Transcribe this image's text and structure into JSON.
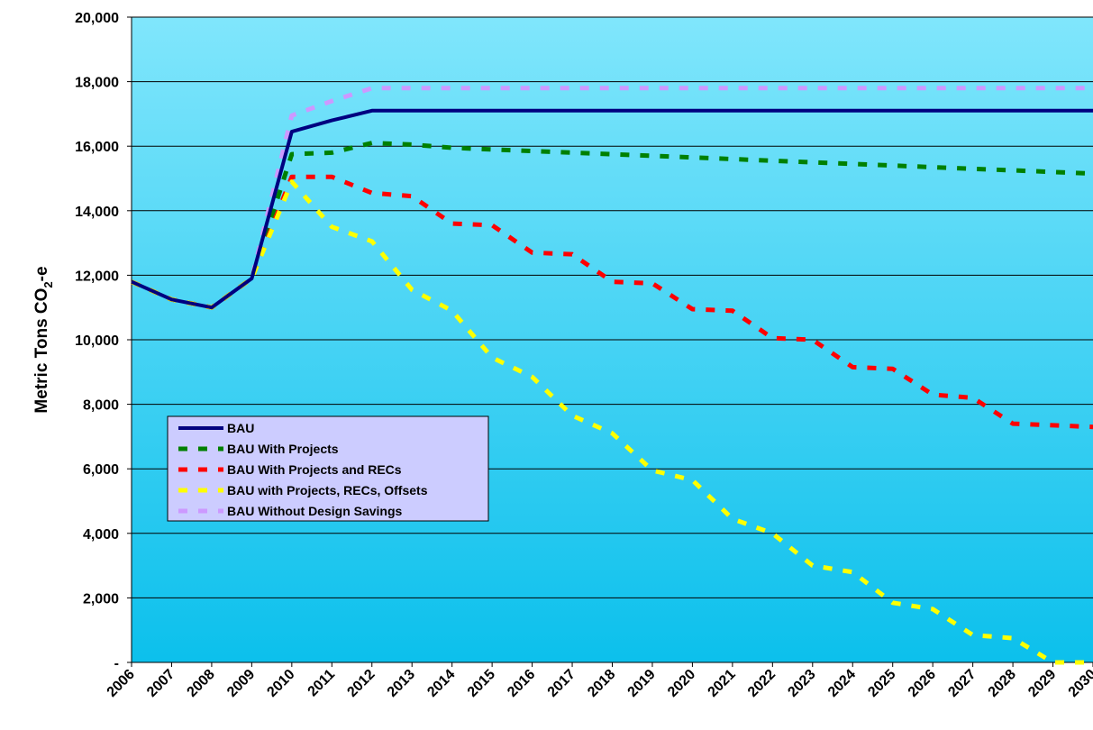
{
  "chart_data": {
    "type": "line",
    "title": "",
    "xlabel": "",
    "ylabel": "Metric Tons CO2-e",
    "ylabel_parts": {
      "main": "Metric Tons CO",
      "sub": "2",
      "tail": "-e"
    },
    "categories": [
      "2006",
      "2007",
      "2008",
      "2009",
      "2010",
      "2011",
      "2012",
      "2013",
      "2014",
      "2015",
      "2016",
      "2017",
      "2018",
      "2019",
      "2020",
      "2021",
      "2022",
      "2023",
      "2024",
      "2025",
      "2026",
      "2027",
      "2028",
      "2029",
      "2030"
    ],
    "ylim": [
      0,
      20000
    ],
    "yticks": [
      0,
      2000,
      4000,
      6000,
      8000,
      10000,
      12000,
      14000,
      16000,
      18000,
      20000
    ],
    "ytick_labels": [
      "-",
      "2,000",
      "4,000",
      "6,000",
      "8,000",
      "10,000",
      "12,000",
      "14,000",
      "16,000",
      "18,000",
      "20,000"
    ],
    "grid": true,
    "legend_position": "left-middle",
    "series": [
      {
        "name": "BAU",
        "color": "#000080",
        "style": "solid",
        "values": [
          11800,
          11250,
          11000,
          11900,
          16450,
          16800,
          17100,
          17100,
          17100,
          17100,
          17100,
          17100,
          17100,
          17100,
          17100,
          17100,
          17100,
          17100,
          17100,
          17100,
          17100,
          17100,
          17100,
          17100,
          17100
        ]
      },
      {
        "name": "BAU With Projects",
        "color": "#008000",
        "style": "dashed",
        "values": [
          11800,
          11250,
          11000,
          11900,
          15750,
          15800,
          16100,
          16050,
          15950,
          15900,
          15850,
          15800,
          15750,
          15700,
          15650,
          15600,
          15550,
          15500,
          15450,
          15400,
          15350,
          15300,
          15250,
          15200,
          15150
        ]
      },
      {
        "name": "BAU With Projects and RECs",
        "color": "#ff0000",
        "style": "dashed",
        "values": [
          11800,
          11250,
          11000,
          11900,
          15050,
          15050,
          14550,
          14450,
          13600,
          13550,
          12700,
          12650,
          11800,
          11750,
          10950,
          10900,
          10050,
          10000,
          9150,
          9100,
          8300,
          8200,
          7400,
          7350,
          7300
        ]
      },
      {
        "name": "BAU with Projects, RECs, Offsets",
        "color": "#ffff00",
        "style": "dashed",
        "values": [
          11800,
          11250,
          11000,
          11900,
          14900,
          13500,
          13050,
          11550,
          10900,
          9450,
          8850,
          7650,
          7100,
          5950,
          5650,
          4450,
          4000,
          3000,
          2800,
          1850,
          1650,
          850,
          750,
          0,
          0
        ]
      },
      {
        "name": "BAU Without Design Savings",
        "color": "#cc99ff",
        "style": "dashed",
        "values": [
          11800,
          11250,
          11000,
          11900,
          16950,
          17400,
          17800,
          17800,
          17800,
          17800,
          17800,
          17800,
          17800,
          17800,
          17800,
          17800,
          17800,
          17800,
          17800,
          17800,
          17800,
          17800,
          17800,
          17800,
          17800
        ]
      }
    ]
  }
}
